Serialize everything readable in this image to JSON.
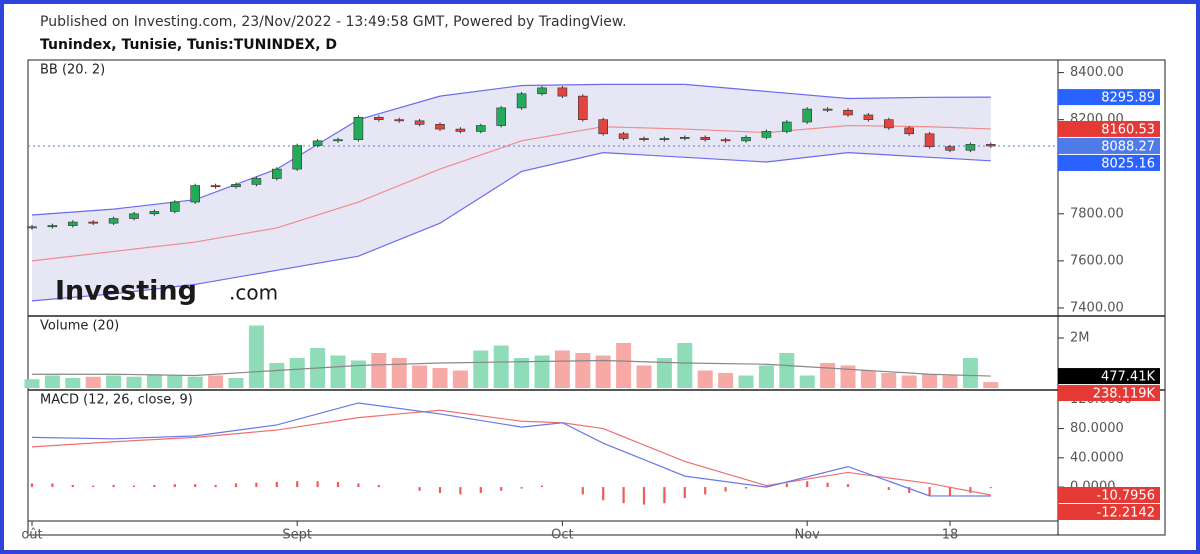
{
  "header": {
    "published": "Published on Investing.com, 23/Nov/2022 - 13:49:58 GMT, Powered by TradingView.",
    "symbol": "Tunindex, Tunisie, Tunis:TUNINDEX, D"
  },
  "chart_data": [
    {
      "type": "candlestick",
      "label": "BB (20. 2)",
      "watermark": [
        "Investing",
        ".com"
      ],
      "ylim": [
        7370,
        8445
      ],
      "yticks": [
        {
          "value": 7400,
          "label": "7400.00"
        },
        {
          "value": 7600,
          "label": "7600.00"
        },
        {
          "value": 7800,
          "label": "7800.00"
        },
        {
          "value": 8000,
          "label": "8000.00"
        },
        {
          "value": 8200,
          "label": "8200.00"
        },
        {
          "value": 8400,
          "label": "8400.00"
        }
      ],
      "open": [
        7740,
        7745,
        7750,
        7765,
        7760,
        7780,
        7800,
        7810,
        7850,
        7920,
        7915,
        7925,
        7950,
        7990,
        8090,
        8110,
        8115,
        8210,
        8200,
        8195,
        8180,
        8160,
        8150,
        8175,
        8250,
        8310,
        8335,
        8300,
        8200,
        8140,
        8120,
        8115,
        8120,
        8125,
        8115,
        8110,
        8125,
        8150,
        8190,
        8245,
        8240,
        8220,
        8200,
        8165,
        8140,
        8085,
        8070,
        8095
      ],
      "high": [
        7753,
        7758,
        7773,
        7773,
        7788,
        7808,
        7818,
        7858,
        7928,
        7928,
        7933,
        7958,
        7998,
        8098,
        8118,
        8123,
        8218,
        8218,
        8208,
        8203,
        8188,
        8168,
        8183,
        8258,
        8318,
        8343,
        8343,
        8308,
        8208,
        8148,
        8128,
        8128,
        8133,
        8133,
        8123,
        8133,
        8158,
        8198,
        8253,
        8253,
        8248,
        8228,
        8208,
        8173,
        8148,
        8093,
        8103,
        8103
      ],
      "low": [
        7732,
        7737,
        7742,
        7752,
        7752,
        7772,
        7792,
        7802,
        7842,
        7907,
        7907,
        7917,
        7942,
        7982,
        8082,
        8102,
        8107,
        8192,
        8187,
        8172,
        8152,
        8142,
        8142,
        8167,
        8242,
        8302,
        8292,
        8192,
        8132,
        8112,
        8107,
        8107,
        8112,
        8107,
        8102,
        8102,
        8117,
        8142,
        8182,
        8232,
        8212,
        8192,
        8157,
        8132,
        8077,
        8062,
        8062,
        8080
      ],
      "close": [
        7745,
        7750,
        7765,
        7760,
        7780,
        7800,
        7810,
        7850,
        7920,
        7915,
        7925,
        7950,
        7990,
        8090,
        8110,
        8115,
        8210,
        8200,
        8195,
        8180,
        8160,
        8150,
        8175,
        8250,
        8310,
        8335,
        8300,
        8200,
        8140,
        8120,
        8115,
        8120,
        8125,
        8115,
        8110,
        8125,
        8150,
        8190,
        8245,
        8240,
        8220,
        8200,
        8165,
        8140,
        8085,
        8070,
        8095,
        8088.27
      ],
      "up_color": "#22ab5b",
      "down_color": "#e0463f",
      "bands": {
        "x": [
          0,
          4,
          8,
          12,
          16,
          20,
          24,
          28,
          32,
          36,
          40,
          44,
          47
        ],
        "upper": [
          7795,
          7820,
          7860,
          7990,
          8200,
          8300,
          8345,
          8350,
          8350,
          8320,
          8290,
          8295,
          8295.89
        ],
        "middle": [
          7600,
          7640,
          7680,
          7740,
          7850,
          7990,
          8110,
          8170,
          8160,
          8145,
          8175,
          8170,
          8160.53
        ],
        "lower": [
          7430,
          7460,
          7500,
          7560,
          7620,
          7760,
          7980,
          8060,
          8040,
          8020,
          8060,
          8040,
          8025.16
        ],
        "edge_color": "#6b6bf0",
        "middle_color": "#f08c8c",
        "fill": "#e6e6f5"
      },
      "last_line_color": "#5b7bd6",
      "badge_colors": {
        "upper": "#2962ff",
        "middle": "#e53935",
        "close": "#4f7be8",
        "lower": "#2962ff"
      }
    },
    {
      "type": "bar",
      "label": "Volume (20)",
      "ylim": [
        0,
        2800000
      ],
      "yticks": [
        {
          "value": 2000000,
          "label": "2M"
        }
      ],
      "values": [
        350000,
        500000,
        400000,
        450000,
        500000,
        450000,
        550000,
        500000,
        450000,
        500000,
        400000,
        2500000,
        1000000,
        1200000,
        1600000,
        1300000,
        1100000,
        1400000,
        1200000,
        900000,
        800000,
        700000,
        1500000,
        1700000,
        1200000,
        1300000,
        1500000,
        1400000,
        1300000,
        1800000,
        900000,
        1200000,
        1800000,
        700000,
        600000,
        500000,
        900000,
        1400000,
        500000,
        1000000,
        900000,
        700000,
        600000,
        500000,
        550000,
        500000,
        1200000,
        238119
      ],
      "up_color": "#8fdcb9",
      "down_color": "#f7a9a6",
      "ma": {
        "x": [
          0,
          4,
          8,
          12,
          16,
          20,
          24,
          28,
          32,
          36,
          40,
          44,
          47
        ],
        "values": [
          550000,
          550000,
          500000,
          700000,
          900000,
          1000000,
          1050000,
          1100000,
          1000000,
          950000,
          750000,
          550000,
          477410
        ],
        "color": "#888888"
      },
      "badges": [
        {
          "value": 477410,
          "label": "477.41K",
          "color": "#000000"
        },
        {
          "value": 238119,
          "label": "238.119K",
          "color": "#e53935"
        }
      ]
    },
    {
      "type": "line",
      "label": "MACD (12, 26, close, 9)",
      "ylim": [
        -45,
        130
      ],
      "yticks": [
        {
          "value": 0,
          "label": "0.0000"
        },
        {
          "value": 40,
          "label": "40.0000"
        },
        {
          "value": 80,
          "label": "80.0000"
        },
        {
          "value": 120,
          "label": "120.0000"
        }
      ],
      "x": [
        0,
        4,
        8,
        12,
        16,
        20,
        24,
        26,
        28,
        32,
        36,
        40,
        44,
        47
      ],
      "macd": [
        68,
        66,
        70,
        85,
        115,
        100,
        82,
        88,
        60,
        15,
        0,
        28,
        -12,
        -12.2142
      ],
      "signal": [
        55,
        62,
        68,
        78,
        95,
        105,
        90,
        88,
        80,
        35,
        2,
        20,
        5,
        -10.7956
      ],
      "macd_color": "#6a78e8",
      "signal_color": "#f07070",
      "histogram": [
        5,
        5,
        3,
        2,
        3,
        2,
        3,
        4,
        4,
        3,
        5,
        6,
        7,
        8,
        8,
        7,
        5,
        3,
        0,
        -5,
        -8,
        -10,
        -8,
        -5,
        -2,
        2,
        0,
        -10,
        -18,
        -22,
        -24,
        -22,
        -15,
        -10,
        -6,
        -2,
        2,
        5,
        8,
        6,
        4,
        0,
        -4,
        -8,
        -12,
        -12,
        -8,
        -1.42
      ],
      "histogram_color": "#f05a5a",
      "badge_colors": {
        "signal": "#e53935",
        "macd": "#e53935"
      },
      "categories": [
        "oût",
        null,
        null,
        null,
        null,
        null,
        null,
        null,
        null,
        null,
        null,
        null,
        null,
        "Sept",
        null,
        null,
        null,
        null,
        null,
        null,
        null,
        null,
        null,
        null,
        null,
        null,
        "Oct",
        null,
        null,
        null,
        null,
        null,
        null,
        null,
        null,
        null,
        null,
        null,
        "Nov",
        null,
        null,
        null,
        null,
        null,
        null,
        "18",
        null,
        null
      ]
    }
  ]
}
